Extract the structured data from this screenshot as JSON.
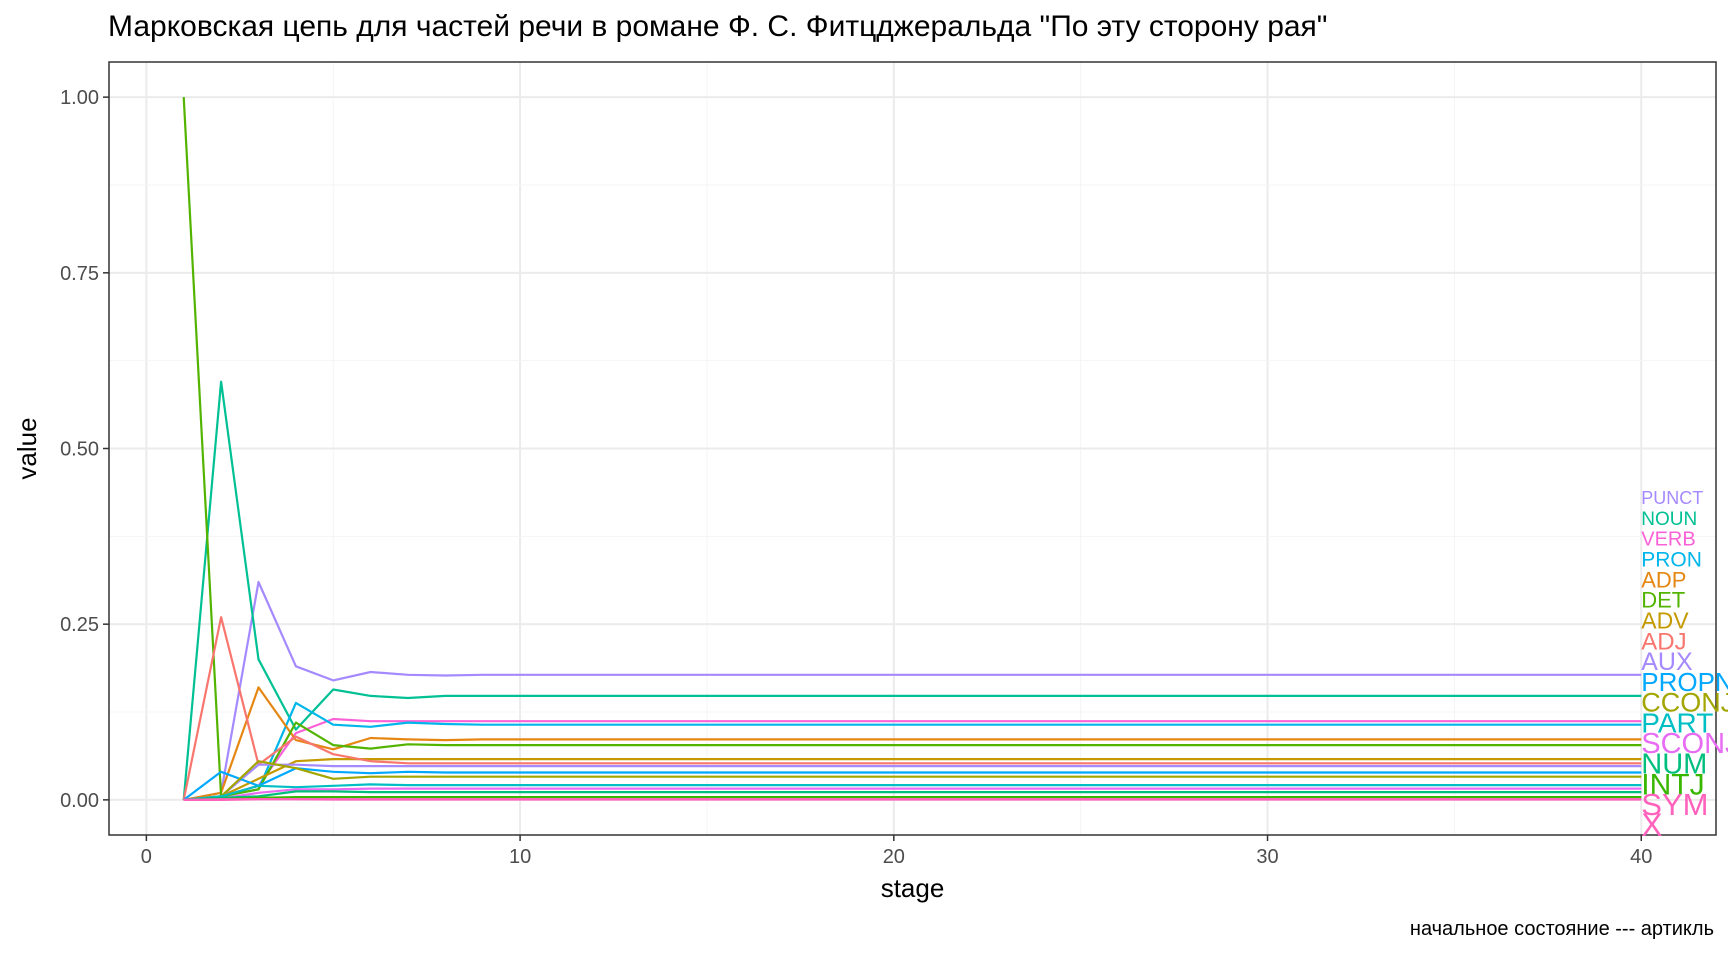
{
  "chart_data": {
    "type": "line",
    "title": "Марковская цепь для частей речи в романе Ф. С. Фитцджеральда \"По эту сторону рая\"",
    "caption": "начальное состояние --- артикль",
    "xlabel": "stage",
    "ylabel": "value",
    "xlim": [
      -1,
      42
    ],
    "ylim": [
      -0.05,
      1.05
    ],
    "x_ticks": [
      0,
      10,
      20,
      30,
      40
    ],
    "x_tick_labels": [
      "0",
      "10",
      "20",
      "30",
      "40"
    ],
    "y_ticks": [
      0,
      0.25,
      0.5,
      0.75,
      1.0
    ],
    "y_tick_labels": [
      "0.00",
      "0.25",
      "0.50",
      "0.75",
      "1.00"
    ],
    "grid": true,
    "legend": "series labels at right end of lines",
    "x": [
      1,
      2,
      3,
      4,
      5,
      6,
      7,
      8,
      9,
      10,
      40
    ],
    "series": [
      {
        "name": "PUNCT",
        "color": "#A58AFF",
        "values": [
          0,
          0.01,
          0.31,
          0.19,
          0.17,
          0.182,
          0.178,
          0.177,
          0.178,
          0.178,
          0.178
        ]
      },
      {
        "name": "NOUN",
        "color": "#00C094",
        "values": [
          0,
          0.595,
          0.2,
          0.1,
          0.157,
          0.148,
          0.145,
          0.148,
          0.148,
          0.148,
          0.148
        ]
      },
      {
        "name": "VERB",
        "color": "#FB61D7",
        "values": [
          0,
          0.005,
          0.02,
          0.095,
          0.115,
          0.112,
          0.112,
          0.112,
          0.112,
          0.112,
          0.112
        ]
      },
      {
        "name": "PRON",
        "color": "#00B6EB",
        "values": [
          0,
          0.005,
          0.015,
          0.138,
          0.107,
          0.104,
          0.11,
          0.108,
          0.107,
          0.107,
          0.107
        ]
      },
      {
        "name": "ADP",
        "color": "#E68613",
        "values": [
          0,
          0.01,
          0.16,
          0.085,
          0.072,
          0.088,
          0.086,
          0.085,
          0.086,
          0.086,
          0.086
        ]
      },
      {
        "name": "DET",
        "color": "#53B400",
        "values": [
          1.0,
          0.005,
          0.015,
          0.11,
          0.078,
          0.073,
          0.079,
          0.078,
          0.078,
          0.078,
          0.078
        ]
      },
      {
        "name": "ADV",
        "color": "#C49A00",
        "values": [
          0,
          0.005,
          0.03,
          0.055,
          0.058,
          0.058,
          0.058,
          0.058,
          0.058,
          0.058,
          0.058
        ]
      },
      {
        "name": "ADJ",
        "color": "#F8766D",
        "values": [
          0,
          0.26,
          0.05,
          0.09,
          0.065,
          0.055,
          0.052,
          0.052,
          0.052,
          0.052,
          0.052
        ]
      },
      {
        "name": "AUX",
        "color": "#A58AFF",
        "values": [
          0,
          0.005,
          0.05,
          0.05,
          0.048,
          0.048,
          0.048,
          0.048,
          0.048,
          0.048,
          0.048
        ]
      },
      {
        "name": "PROPN",
        "color": "#00A9FF",
        "values": [
          0,
          0.04,
          0.02,
          0.045,
          0.04,
          0.038,
          0.04,
          0.039,
          0.039,
          0.039,
          0.039
        ]
      },
      {
        "name": "CCONJ",
        "color": "#A3A500",
        "values": [
          0,
          0.005,
          0.055,
          0.045,
          0.03,
          0.033,
          0.033,
          0.033,
          0.033,
          0.033,
          0.033
        ]
      },
      {
        "name": "PART",
        "color": "#00BFC4",
        "values": [
          0,
          0.005,
          0.02,
          0.018,
          0.02,
          0.022,
          0.021,
          0.021,
          0.021,
          0.021,
          0.021
        ]
      },
      {
        "name": "SCONJ",
        "color": "#E76BF3",
        "values": [
          0,
          0.002,
          0.01,
          0.015,
          0.015,
          0.016,
          0.016,
          0.016,
          0.016,
          0.016,
          0.016
        ]
      },
      {
        "name": "NUM",
        "color": "#00BF7D",
        "values": [
          0,
          0.003,
          0.005,
          0.012,
          0.012,
          0.011,
          0.011,
          0.011,
          0.011,
          0.011,
          0.011
        ]
      },
      {
        "name": "INTJ",
        "color": "#39B600",
        "values": [
          0,
          0.001,
          0.003,
          0.004,
          0.004,
          0.004,
          0.004,
          0.004,
          0.004,
          0.004,
          0.004
        ]
      },
      {
        "name": "SYM",
        "color": "#FF62BC",
        "values": [
          0,
          0.001,
          0.001,
          0.001,
          0.001,
          0.001,
          0.001,
          0.001,
          0.001,
          0.001,
          0.001
        ]
      },
      {
        "name": "X",
        "color": "#FF62BC",
        "values": [
          0,
          0.0,
          0.001,
          0.001,
          0.0005,
          0.0005,
          0.0005,
          0.0005,
          0.0005,
          0.0005,
          0.0005
        ]
      }
    ]
  }
}
